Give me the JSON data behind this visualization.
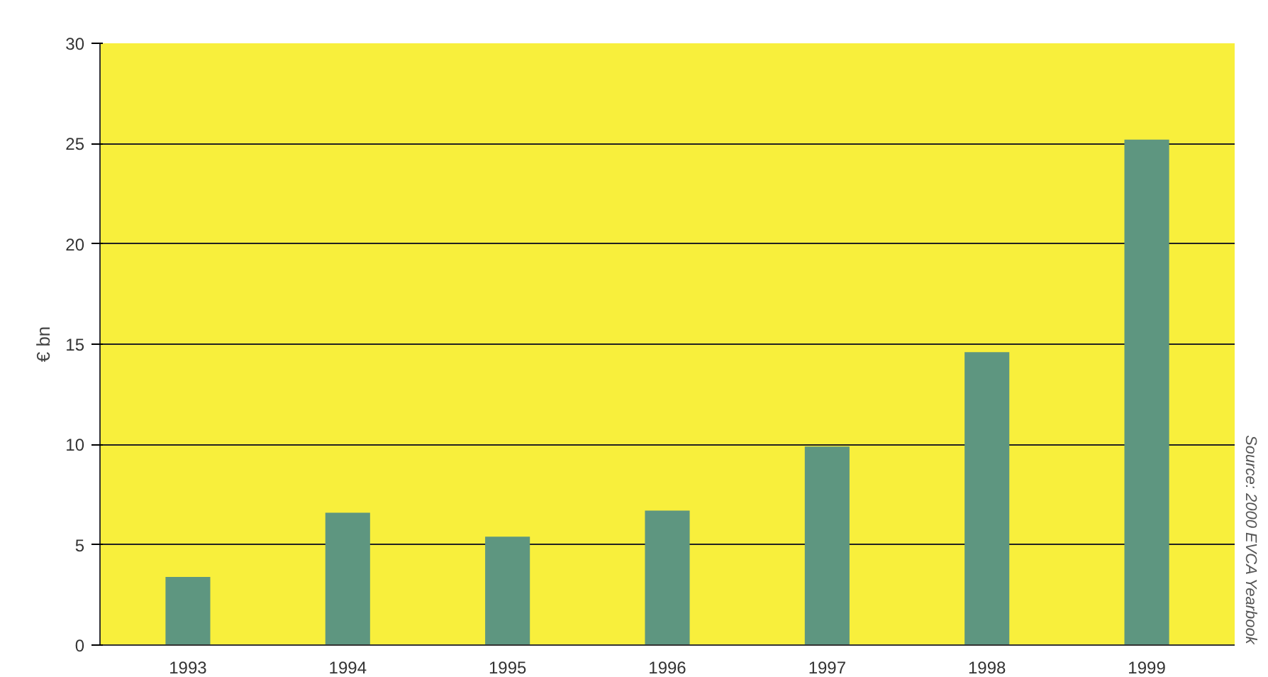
{
  "chart_data": {
    "type": "bar",
    "ylabel": "€ bn",
    "categories": [
      "1993",
      "1994",
      "1995",
      "1996",
      "1997",
      "1998",
      "1999"
    ],
    "values": [
      3.4,
      6.6,
      5.4,
      6.7,
      9.9,
      14.6,
      25.2
    ],
    "color": "#5e9680",
    "ylim": [
      0,
      30
    ],
    "yticks": [
      0,
      5,
      10,
      15,
      20,
      25,
      30
    ],
    "grid": "y",
    "annotations": [
      "Source: 2000 EVCA Yearbook"
    ]
  }
}
